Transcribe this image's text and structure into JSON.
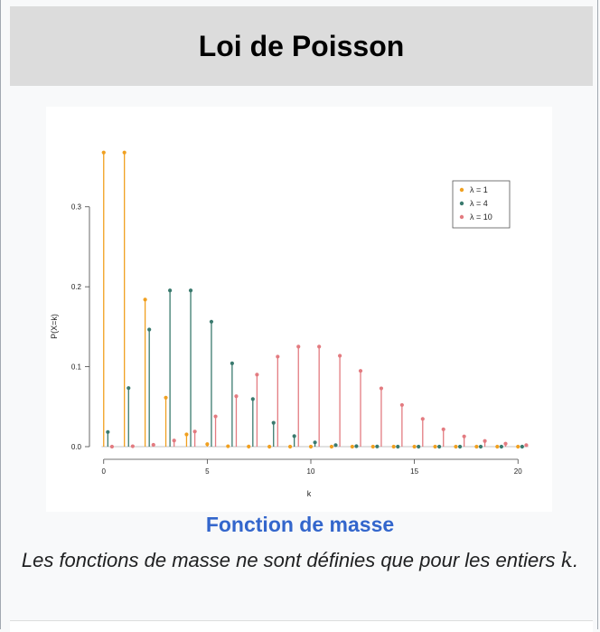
{
  "header": {
    "title": "Loi de Poisson"
  },
  "caption": {
    "title": "Fonction de masse",
    "text_before": "Les fonctions de masse ne sont définies que pour les entiers ",
    "math": "k",
    "text_after": "."
  },
  "chart_data": {
    "type": "bar",
    "xlabel": "k",
    "ylabel": "P(X=k)",
    "xlim": [
      -0.6,
      20.6
    ],
    "ylim": [
      0,
      0.38
    ],
    "x_ticks": [
      0,
      5,
      10,
      15,
      20
    ],
    "y_ticks": [
      0.0,
      0.1,
      0.2,
      0.3
    ],
    "y_tick_labels": [
      "0.0",
      "0.1",
      "0.2",
      "0.3"
    ],
    "legend_position": "top-right",
    "categories": [
      0,
      1,
      2,
      3,
      4,
      5,
      6,
      7,
      8,
      9,
      10,
      11,
      12,
      13,
      14,
      15,
      16,
      17,
      18,
      19,
      20
    ],
    "series": [
      {
        "name": "λ = 1",
        "color": "#f0a020",
        "values": [
          0.3679,
          0.3679,
          0.1839,
          0.0613,
          0.0153,
          0.0031,
          0.0005,
          0.0001,
          0,
          0,
          0,
          0,
          0,
          0,
          0,
          0,
          0,
          0,
          0,
          0,
          0
        ]
      },
      {
        "name": "λ = 4",
        "color": "#3a7a6e",
        "values": [
          0.0183,
          0.0733,
          0.1465,
          0.1954,
          0.1954,
          0.1563,
          0.1042,
          0.0595,
          0.0298,
          0.0132,
          0.0053,
          0.0019,
          0.0006,
          0.0002,
          0,
          0,
          0,
          0,
          0,
          0,
          0
        ]
      },
      {
        "name": "λ = 10",
        "color": "#e37b80",
        "values": [
          5e-05,
          0.0005,
          0.0023,
          0.0076,
          0.0189,
          0.0378,
          0.0631,
          0.0901,
          0.1126,
          0.1251,
          0.1251,
          0.1137,
          0.0948,
          0.0729,
          0.0521,
          0.0347,
          0.0217,
          0.0128,
          0.0071,
          0.0037,
          0.0019
        ]
      }
    ]
  }
}
